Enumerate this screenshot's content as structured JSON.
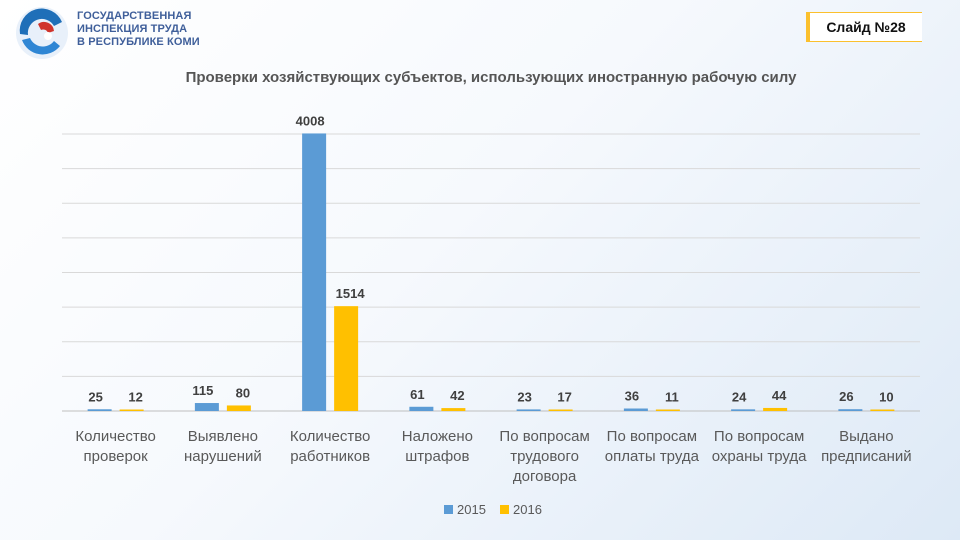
{
  "header": {
    "org_name_lines": [
      "ГОСУДАРСТВЕННАЯ",
      "ИНСПЕКЦИЯ ТРУДА",
      "В РЕСПУБЛИКЕ КОМИ"
    ],
    "slide_label": "Слайд №28"
  },
  "colors": {
    "series_2015": "#5b9bd5",
    "series_2016": "#ffc000",
    "accent_blue": "#1f6fb8",
    "accent_red": "#d0342c",
    "accent_yellow": "#fbc02d"
  },
  "chart_data": {
    "type": "bar",
    "title": "Проверки хозяйствующих субъектов, использующих иностранную рабочую силу",
    "categories": [
      [
        "Количество",
        "проверок"
      ],
      [
        "Выявлено",
        "нарушений"
      ],
      [
        "Количество",
        "работников"
      ],
      [
        "Наложено",
        "штрафов"
      ],
      [
        "По вопросам",
        "трудового",
        "договора"
      ],
      [
        "По вопросам",
        "оплаты труда"
      ],
      [
        "По вопросам",
        "охраны труда"
      ],
      [
        "Выдано",
        "предписаний"
      ]
    ],
    "series": [
      {
        "name": "2015",
        "values": [
          25,
          115,
          4008,
          61,
          23,
          36,
          24,
          26
        ]
      },
      {
        "name": "2016",
        "values": [
          12,
          80,
          1514,
          42,
          17,
          11,
          44,
          10
        ]
      }
    ],
    "ylim": [
      0,
      4000
    ],
    "grid": true,
    "legend": "bottom"
  }
}
